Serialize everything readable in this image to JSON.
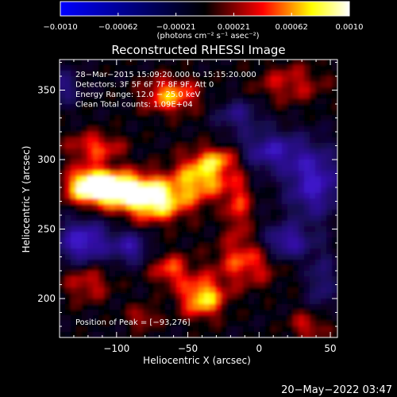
{
  "colorbar": {
    "tick_labels": [
      "−0.0010",
      "−0.00062",
      "−0.00021",
      "0.00021",
      "0.00062",
      "0.0010"
    ],
    "min": -0.001,
    "max": 0.001,
    "units_label": "(photons cm⁻² s⁻¹ asec⁻²)",
    "palette": [
      "#0000ff",
      "#000000",
      "#ff0000",
      "#ffff00",
      "#ffffff"
    ]
  },
  "chart_data": {
    "type": "heatmap",
    "title": "Reconstructed RHESSI Image",
    "xlabel": "Heliocentric X (arcsec)",
    "ylabel": "Heliocentric Y (arcsec)",
    "xlim": [
      -140,
      55
    ],
    "ylim": [
      172,
      372
    ],
    "x_ticks": [
      -100,
      -50,
      0,
      50
    ],
    "y_ticks": [
      200,
      250,
      300,
      350
    ],
    "x_tick_labels": [
      "−100",
      "−50",
      "0",
      "50"
    ],
    "y_tick_labels": [
      "200",
      "250",
      "300",
      "350"
    ],
    "annotations": [
      "28−Mar−2015 15:09:20.000 to 15:15:20.000",
      "Detectors: 3F 5F 6F 7F 8F 9F, Att 0",
      "Energy Range: 12.0 − 25.0 keV",
      "Clean     Total counts: 1.09E+04"
    ],
    "peak_label": "Position of Peak = [−93,276]",
    "peak": [
      -93,
      276
    ]
  },
  "footer": {
    "date": "20−May−2022 03:47"
  }
}
